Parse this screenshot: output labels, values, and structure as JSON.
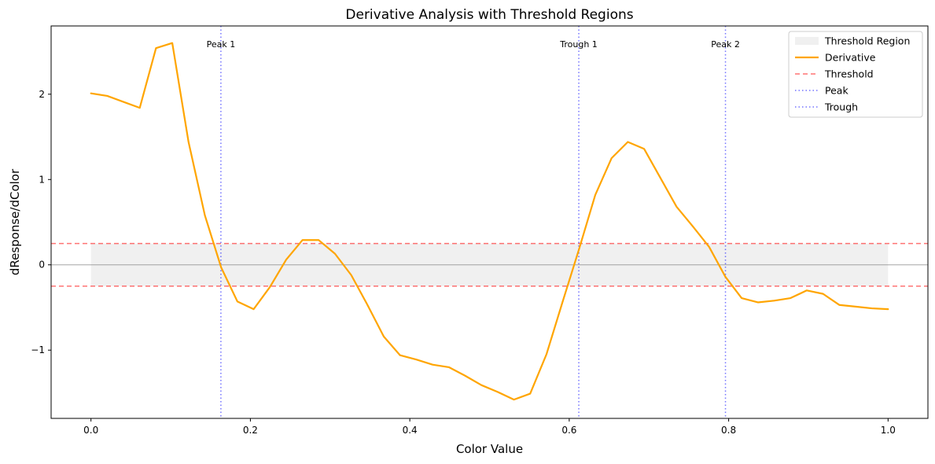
{
  "chart_data": {
    "type": "line",
    "title": "Derivative Analysis with Threshold Regions",
    "xlabel": "Color Value",
    "ylabel": "dResponse/dColor",
    "xlim": [
      -0.05,
      1.05
    ],
    "ylim": [
      -1.8,
      2.8
    ],
    "xticks": [
      0.0,
      0.2,
      0.4,
      0.6,
      0.8,
      1.0
    ],
    "xtick_labels": [
      "0.0",
      "0.2",
      "0.4",
      "0.6",
      "0.8",
      "1.0"
    ],
    "yticks": [
      -1,
      0,
      1,
      2
    ],
    "ytick_labels": [
      "−1",
      "0",
      "1",
      "2"
    ],
    "grid": false,
    "legend_position": "top-right",
    "series": [
      {
        "name": "Derivative",
        "color": "#ffa500",
        "style": "solid",
        "x": [
          0.0,
          0.0204,
          0.0408,
          0.0612,
          0.0816,
          0.102,
          0.1224,
          0.1429,
          0.1633,
          0.1837,
          0.2041,
          0.2245,
          0.2449,
          0.2653,
          0.2857,
          0.3061,
          0.3265,
          0.3469,
          0.3673,
          0.3878,
          0.4082,
          0.4286,
          0.449,
          0.4694,
          0.4898,
          0.5102,
          0.5306,
          0.551,
          0.5714,
          0.5918,
          0.6122,
          0.6327,
          0.6531,
          0.6735,
          0.6939,
          0.7143,
          0.7347,
          0.7551,
          0.7755,
          0.7959,
          0.8163,
          0.8367,
          0.8571,
          0.8776,
          0.898,
          0.9184,
          0.9388,
          0.9592,
          0.9796,
          1.0
        ],
        "y": [
          2.01,
          1.98,
          1.91,
          1.84,
          2.54,
          2.6,
          1.44,
          0.58,
          -0.03,
          -0.43,
          -0.52,
          -0.26,
          0.06,
          0.29,
          0.29,
          0.13,
          -0.12,
          -0.47,
          -0.84,
          -1.06,
          -1.11,
          -1.17,
          -1.2,
          -1.3,
          -1.41,
          -1.49,
          -1.58,
          -1.51,
          -1.05,
          -0.43,
          0.18,
          0.82,
          1.25,
          1.44,
          1.36,
          1.02,
          0.68,
          0.45,
          0.21,
          -0.14,
          -0.39,
          -0.44,
          -0.42,
          -0.39,
          -0.3,
          -0.34,
          -0.47,
          -0.49,
          -0.51,
          -0.52
        ]
      }
    ],
    "threshold": {
      "name": "Threshold",
      "value": 0.25,
      "color": "#ff0000",
      "style": "dashed"
    },
    "threshold_region": {
      "name": "Threshold Region",
      "x_range": [
        0.0,
        1.0
      ],
      "y_range": [
        -0.25,
        0.25
      ],
      "color": "#cccccc"
    },
    "zero_line": {
      "value": 0,
      "color": "#808080"
    },
    "markers": [
      {
        "kind": "Peak",
        "label": "Peak 1",
        "x": 0.163,
        "color": "#0000ff"
      },
      {
        "kind": "Trough",
        "label": "Trough 1",
        "x": 0.612,
        "color": "#0000ff"
      },
      {
        "kind": "Peak",
        "label": "Peak 2",
        "x": 0.796,
        "color": "#0000ff"
      }
    ],
    "legend": [
      {
        "label": "Threshold Region",
        "kind": "patch",
        "color": "#cccccc"
      },
      {
        "label": "Derivative",
        "kind": "line",
        "color": "#ffa500"
      },
      {
        "label": "Threshold",
        "kind": "dashed",
        "color": "#ff0000"
      },
      {
        "label": "Peak",
        "kind": "dotted",
        "color": "#0000ff"
      },
      {
        "label": "Trough",
        "kind": "dotted",
        "color": "#0000ff"
      }
    ]
  }
}
